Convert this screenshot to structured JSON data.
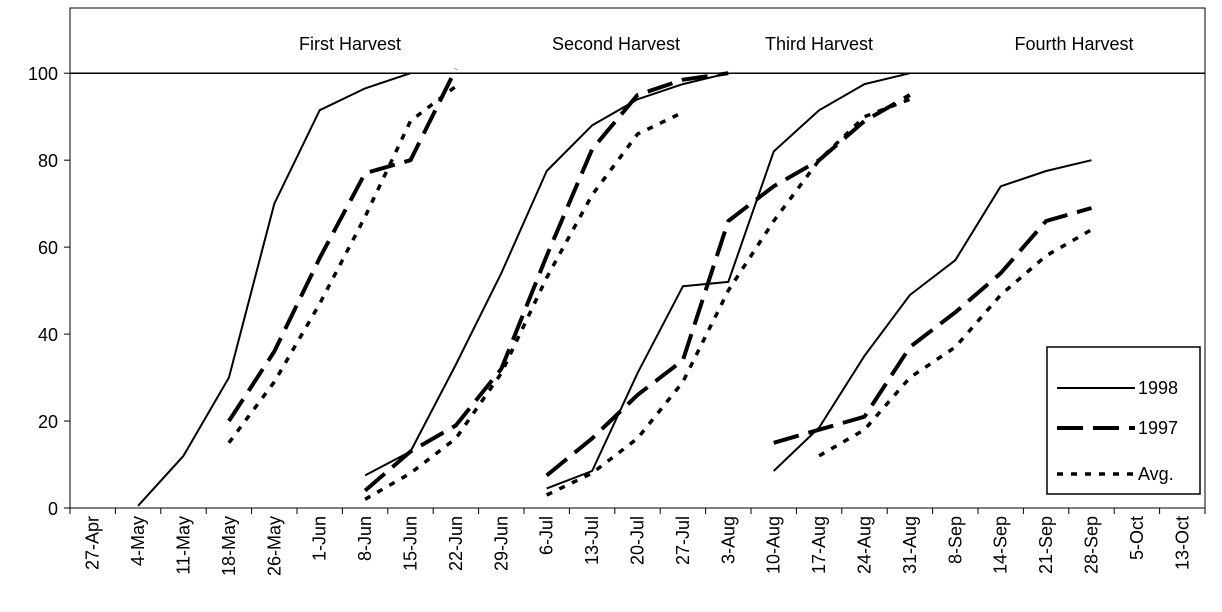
{
  "chart_data": {
    "type": "line",
    "title": "",
    "xlabel": "",
    "ylabel": "",
    "ylim": [
      0,
      115
    ],
    "y_ticks": [
      0,
      20,
      40,
      60,
      80,
      100
    ],
    "reference_line": 100,
    "grid": false,
    "legend_position": "right",
    "x_tick_labels": [
      "27-Apr",
      "4-May",
      "11-May",
      "18-May",
      "26-May",
      "1-Jun",
      "8-Jun",
      "15-Jun",
      "22-Jun",
      "29-Jun",
      "6-Jul",
      "13-Jul",
      "20-Jul",
      "27-Jul",
      "3-Aug",
      "10-Aug",
      "17-Aug",
      "24-Aug",
      "31-Aug",
      "8-Sep",
      "14-Sep",
      "21-Sep",
      "28-Sep",
      "5-Oct",
      "13-Oct"
    ],
    "annotations": [
      "First Harvest",
      "Second Harvest",
      "Third Harvest",
      "Fourth Harvest"
    ],
    "series": [
      {
        "name": "1998",
        "style": "solid",
        "segments": [
          [
            [
              "4-May",
              0.5
            ],
            [
              "11-May",
              12
            ],
            [
              "18-May",
              30
            ],
            [
              "26-May",
              70
            ],
            [
              "1-Jun",
              91.5
            ],
            [
              "8-Jun",
              96.5
            ],
            [
              "15-Jun",
              100
            ]
          ],
          [
            [
              "8-Jun",
              7.5
            ],
            [
              "15-Jun",
              13
            ],
            [
              "22-Jun",
              33
            ],
            [
              "29-Jun",
              54
            ],
            [
              "6-Jul",
              77.5
            ],
            [
              "13-Jul",
              88
            ],
            [
              "20-Jul",
              94
            ],
            [
              "27-Jul",
              97.5
            ],
            [
              "3-Aug",
              100
            ]
          ],
          [
            [
              "6-Jul",
              4.5
            ],
            [
              "13-Jul",
              8.5
            ],
            [
              "20-Jul",
              31
            ],
            [
              "27-Jul",
              51
            ],
            [
              "3-Aug",
              52
            ],
            [
              "10-Aug",
              82
            ],
            [
              "17-Aug",
              91.5
            ],
            [
              "24-Aug",
              97.5
            ],
            [
              "31-Aug",
              100
            ]
          ],
          [
            [
              "10-Aug",
              8.5
            ],
            [
              "17-Aug",
              18.5
            ],
            [
              "24-Aug",
              35
            ],
            [
              "31-Aug",
              49
            ],
            [
              "8-Sep",
              57
            ],
            [
              "14-Sep",
              74
            ],
            [
              "21-Sep",
              77.5
            ],
            [
              "28-Sep",
              80
            ]
          ]
        ]
      },
      {
        "name": "1997",
        "style": "long-dash",
        "segments": [
          [
            [
              "18-May",
              20
            ],
            [
              "26-May",
              36
            ],
            [
              "1-Jun",
              57.5
            ],
            [
              "8-Jun",
              77
            ],
            [
              "15-Jun",
              80
            ],
            [
              "22-Jun",
              101
            ]
          ],
          [
            [
              "8-Jun",
              4
            ],
            [
              "15-Jun",
              13
            ],
            [
              "22-Jun",
              19
            ],
            [
              "29-Jun",
              32
            ],
            [
              "6-Jul",
              58
            ],
            [
              "13-Jul",
              82.5
            ],
            [
              "20-Jul",
              95
            ],
            [
              "27-Jul",
              98.5
            ],
            [
              "3-Aug",
              100
            ]
          ],
          [
            [
              "6-Jul",
              7.5
            ],
            [
              "13-Jul",
              16
            ],
            [
              "20-Jul",
              26
            ],
            [
              "27-Jul",
              34
            ],
            [
              "3-Aug",
              66
            ],
            [
              "10-Aug",
              74
            ],
            [
              "17-Aug",
              80
            ],
            [
              "24-Aug",
              89
            ],
            [
              "31-Aug",
              95
            ]
          ],
          [
            [
              "10-Aug",
              15
            ],
            [
              "17-Aug",
              18
            ],
            [
              "24-Aug",
              21
            ],
            [
              "31-Aug",
              37
            ],
            [
              "8-Sep",
              45
            ],
            [
              "14-Sep",
              54
            ],
            [
              "21-Sep",
              66
            ],
            [
              "28-Sep",
              69
            ]
          ]
        ]
      },
      {
        "name": "Avg.",
        "style": "dotted",
        "segments": [
          [
            [
              "18-May",
              15
            ],
            [
              "26-May",
              29
            ],
            [
              "1-Jun",
              47
            ],
            [
              "8-Jun",
              67
            ],
            [
              "15-Jun",
              89
            ],
            [
              "22-Jun",
              97
            ]
          ],
          [
            [
              "8-Jun",
              2
            ],
            [
              "15-Jun",
              8
            ],
            [
              "22-Jun",
              16
            ],
            [
              "29-Jun",
              31
            ],
            [
              "6-Jul",
              53
            ],
            [
              "13-Jul",
              72
            ],
            [
              "20-Jul",
              86
            ],
            [
              "27-Jul",
              91
            ]
          ],
          [
            [
              "6-Jul",
              3
            ],
            [
              "13-Jul",
              8
            ],
            [
              "20-Jul",
              16
            ],
            [
              "27-Jul",
              29
            ],
            [
              "3-Aug",
              50
            ],
            [
              "10-Aug",
              66
            ],
            [
              "17-Aug",
              80
            ],
            [
              "24-Aug",
              90
            ],
            [
              "31-Aug",
              94
            ]
          ],
          [
            [
              "17-Aug",
              12
            ],
            [
              "24-Aug",
              18
            ],
            [
              "31-Aug",
              30
            ],
            [
              "8-Sep",
              37
            ],
            [
              "14-Sep",
              49
            ],
            [
              "21-Sep",
              58
            ],
            [
              "28-Sep",
              64
            ]
          ]
        ]
      }
    ]
  }
}
